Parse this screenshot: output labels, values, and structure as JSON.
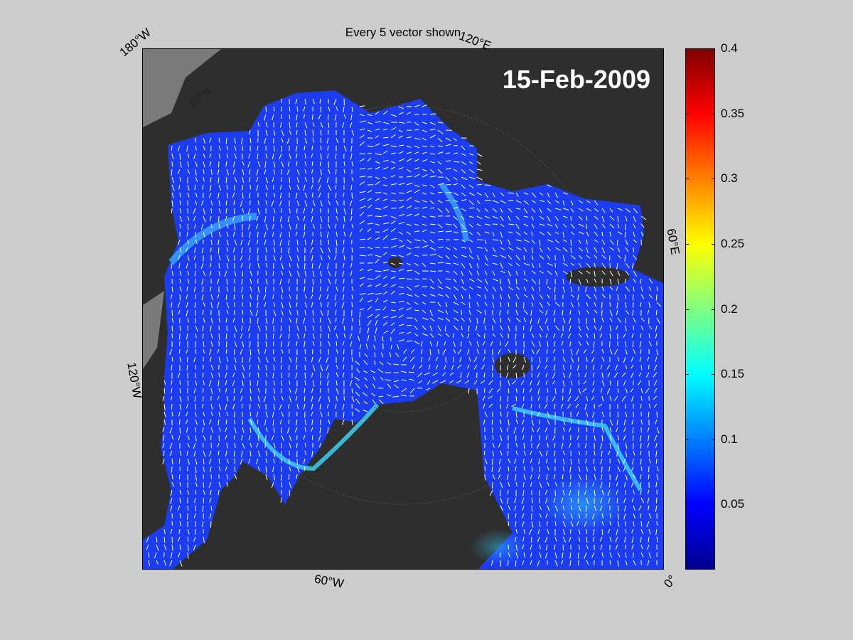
{
  "title": "Every 5 vector shown",
  "date": "15-Feb-2009",
  "lon_labels": {
    "w180": "180°W",
    "e120": "120°E",
    "e60": "60°E",
    "w120": "120°W",
    "w60": "60°W",
    "zero": "0°"
  },
  "lat_label": "80°N",
  "colorbar": {
    "colormap": "jet",
    "range": [
      0,
      0.4
    ],
    "ticks": [
      "0.4",
      "0.35",
      "0.3",
      "0.25",
      "0.2",
      "0.15",
      "0.1",
      "0.05"
    ]
  },
  "colors": {
    "ice_motion": "#1c3cf0",
    "land": "#2e2e2e",
    "frame_bg": "#cccccc",
    "vectors": "#ffffff"
  }
}
